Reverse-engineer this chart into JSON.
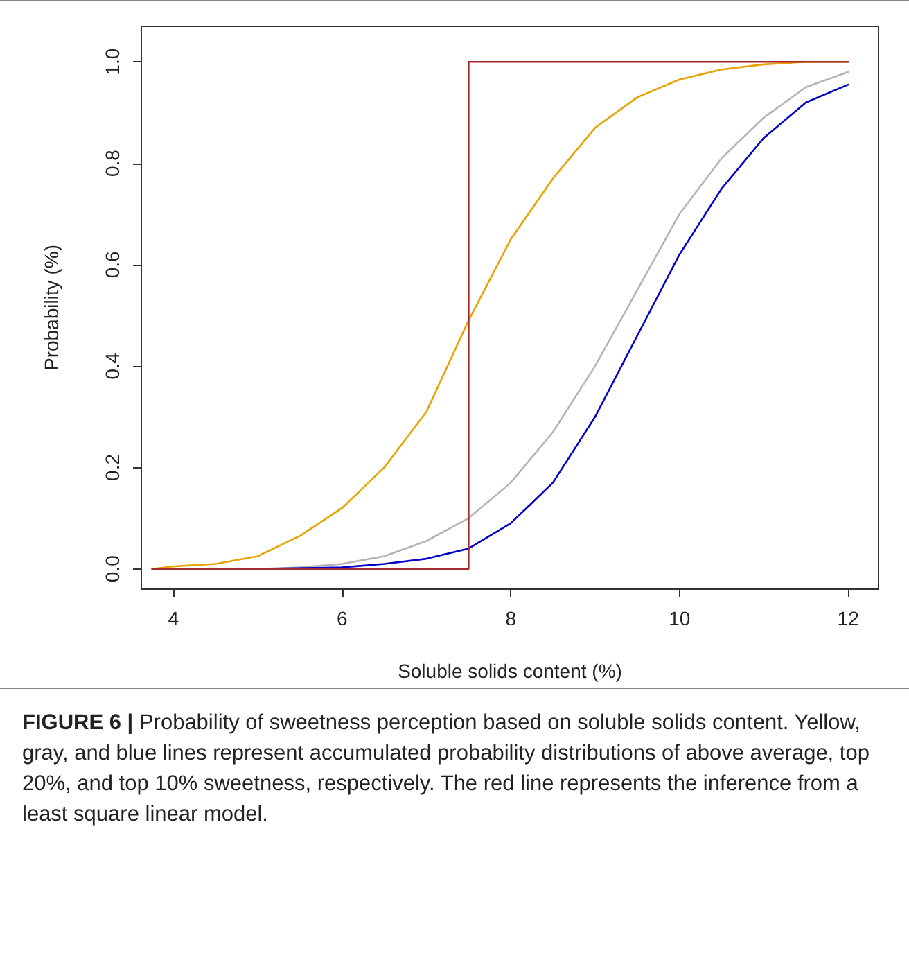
{
  "chart_data": {
    "type": "line",
    "xlabel": "Soluble solids content (%)",
    "ylabel": "Probability (%)",
    "xlim": [
      3.62,
      12.36
    ],
    "ylim": [
      -0.04,
      1.07
    ],
    "xticks": [
      4,
      6,
      8,
      10,
      12
    ],
    "yticks": [
      {
        "value": 0,
        "label": "0.0"
      },
      {
        "value": 0.2,
        "label": "0.2"
      },
      {
        "value": 0.4,
        "label": "0.4"
      },
      {
        "value": 0.6,
        "label": "0.6"
      },
      {
        "value": 0.8,
        "label": "0.8"
      },
      {
        "value": 1,
        "label": "1.0"
      }
    ],
    "grid": false,
    "marker": "none",
    "line_style": "solid",
    "series": [
      {
        "color": "#e8a200",
        "x": [
          3.75,
          4,
          4.5,
          5,
          5.5,
          6,
          6.5,
          7,
          7.5,
          8,
          8.5,
          9,
          9.5,
          10,
          10.5,
          11,
          11.5,
          12
        ],
        "values": [
          0,
          0.005,
          0.01,
          0.025,
          0.065,
          0.12,
          0.2,
          0.31,
          0.49,
          0.65,
          0.77,
          0.87,
          0.93,
          0.965,
          0.985,
          0.995,
          1,
          1
        ]
      },
      {
        "color": "#b4b4b4",
        "x": [
          3.75,
          5,
          5.5,
          6,
          6.5,
          7,
          7.5,
          8,
          8.5,
          9,
          9.5,
          10,
          10.5,
          11,
          11.5,
          12
        ],
        "values": [
          0,
          0,
          0.003,
          0.01,
          0.025,
          0.055,
          0.1,
          0.17,
          0.27,
          0.4,
          0.55,
          0.7,
          0.81,
          0.89,
          0.95,
          0.98
        ]
      },
      {
        "color": "#0000c8",
        "x": [
          3.75,
          5,
          6,
          6.5,
          7,
          7.5,
          8,
          8.5,
          9,
          9.5,
          10,
          10.5,
          11,
          11.5,
          12
        ],
        "values": [
          0,
          0,
          0.003,
          0.01,
          0.02,
          0.04,
          0.09,
          0.17,
          0.3,
          0.46,
          0.62,
          0.75,
          0.85,
          0.92,
          0.955
        ]
      },
      {
        "color": "#a52a2a",
        "x": [
          3.75,
          7.5,
          7.5,
          12
        ],
        "values": [
          0,
          0,
          1,
          1
        ]
      }
    ],
    "annotations": [
      "FIGURE 6 | Probability of sweetness perception based on soluble solids content. Yellow, gray, and blue lines represent accumulated probability distributions of above average, top 20%, and top 10% sweetness, respectively. The red line represents the inference from a least square linear model."
    ]
  }
}
